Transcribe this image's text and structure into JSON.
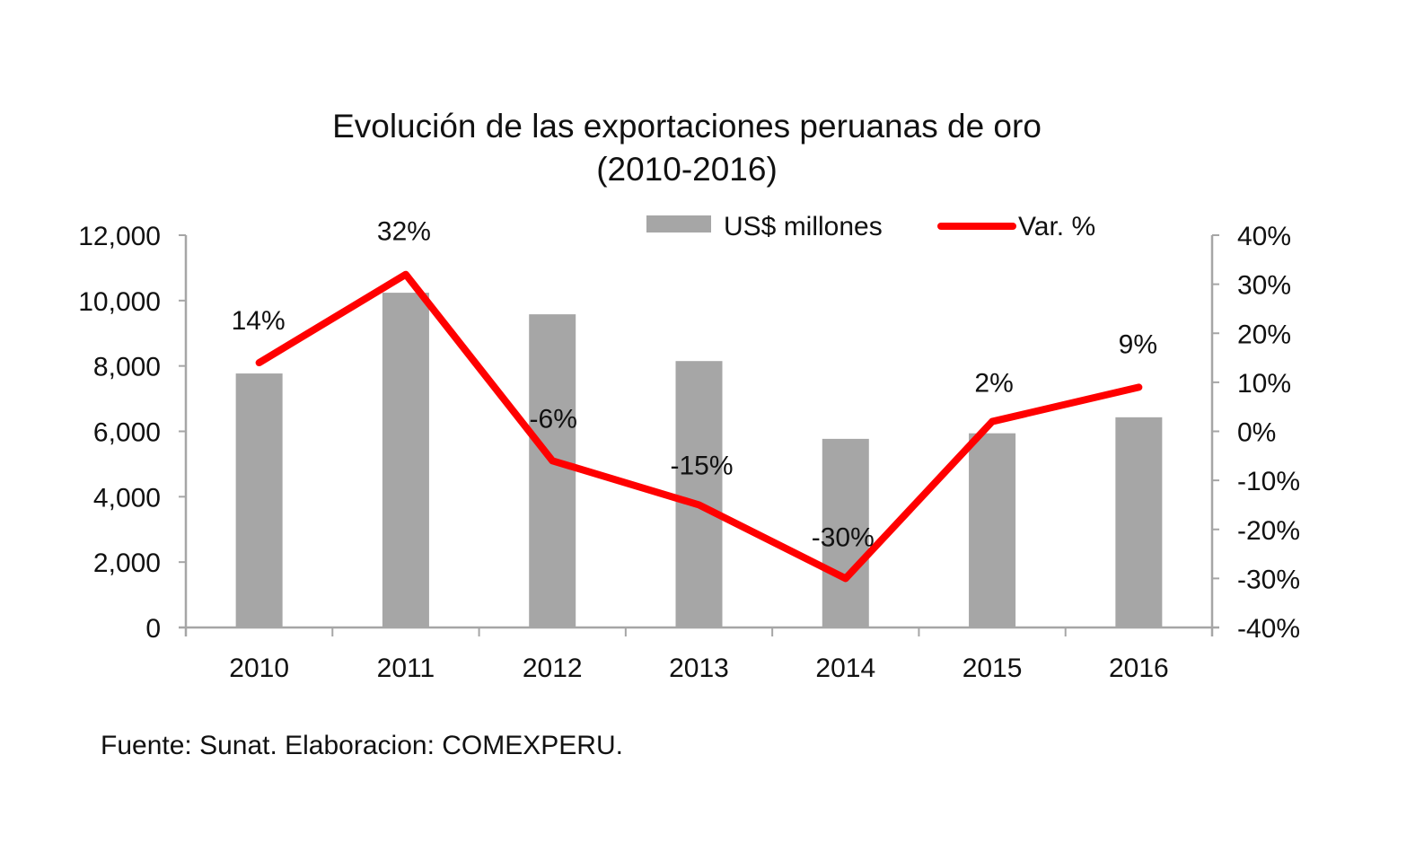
{
  "chart_data": {
    "type": "bar+line",
    "title": [
      "Evolución de las exportaciones peruanas de oro",
      "(2010-2016)"
    ],
    "categories": [
      "2010",
      "2011",
      "2012",
      "2013",
      "2014",
      "2015",
      "2016"
    ],
    "series": [
      {
        "name": "US$ millones",
        "type": "bar",
        "axis": "left",
        "color": "#a6a6a6",
        "values": [
          7770,
          10240,
          9580,
          8150,
          5770,
          5940,
          6430
        ]
      },
      {
        "name": "Var. %",
        "type": "line",
        "axis": "right",
        "color": "#ff0000",
        "values": [
          14,
          32,
          -6,
          -15,
          -30,
          2,
          9
        ],
        "data_labels": [
          "14%",
          "32%",
          "-6%",
          "-15%",
          "-30%",
          "2%",
          "9%"
        ]
      }
    ],
    "left_axis": {
      "range": [
        0,
        12000
      ],
      "ticks": [
        0,
        2000,
        4000,
        6000,
        8000,
        10000,
        12000
      ],
      "tick_labels": [
        "0",
        "2,000",
        "4,000",
        "6,000",
        "8,000",
        "10,000",
        "12,000"
      ]
    },
    "right_axis": {
      "range": [
        -40,
        40
      ],
      "ticks": [
        -40,
        -30,
        -20,
        -10,
        0,
        10,
        20,
        30,
        40
      ],
      "tick_labels": [
        "-40%",
        "-30%",
        "-20%",
        "-10%",
        "0%",
        "10%",
        "20%",
        "30%",
        "40%"
      ]
    },
    "xlabel": "",
    "ylabel": "",
    "grid": false,
    "legend_position": "top-right",
    "axis_color": "#a6a6a6"
  },
  "footer": {
    "source": "Fuente: Sunat. Elaboracion: COMEXPERU."
  }
}
